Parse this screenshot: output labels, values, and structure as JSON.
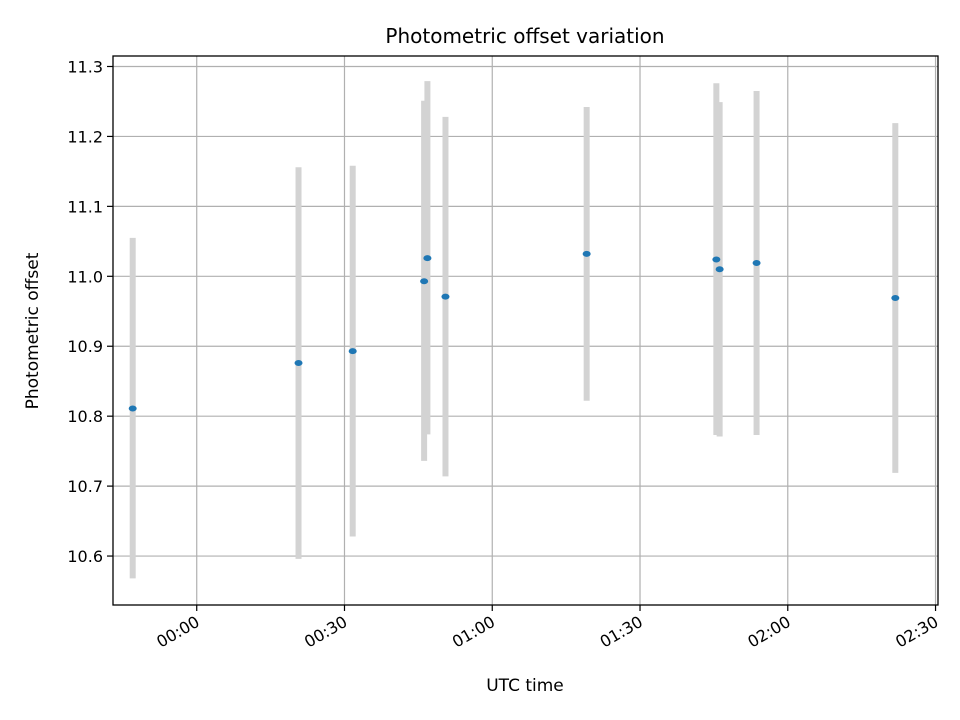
{
  "chart_data": {
    "type": "scatter",
    "title": "Photometric offset variation",
    "xlabel": "UTC time",
    "ylabel": "Photometric offset",
    "xlim": [
      "2023-01-01T23:43:00",
      "2023-01-02T02:30:30"
    ],
    "ylim": [
      10.53,
      11.315
    ],
    "grid": true,
    "colors": {
      "points": "#1f77b4",
      "errorbars": "#d3d3d3",
      "grid": "#b0b0b0"
    },
    "x_ticks": [
      {
        "t": "2023-01-02T00:00:00",
        "label": "00:00"
      },
      {
        "t": "2023-01-02T00:30:00",
        "label": "00:30"
      },
      {
        "t": "2023-01-02T01:00:00",
        "label": "01:00"
      },
      {
        "t": "2023-01-02T01:30:00",
        "label": "01:30"
      },
      {
        "t": "2023-01-02T02:00:00",
        "label": "02:00"
      },
      {
        "t": "2023-01-02T02:30:00",
        "label": "02:30"
      }
    ],
    "y_ticks": [
      {
        "v": 10.6,
        "label": "10.6"
      },
      {
        "v": 10.7,
        "label": "10.7"
      },
      {
        "v": 10.8,
        "label": "10.8"
      },
      {
        "v": 10.9,
        "label": "10.9"
      },
      {
        "v": 11.0,
        "label": "11.0"
      },
      {
        "v": 11.1,
        "label": "11.1"
      },
      {
        "v": 11.2,
        "label": "11.2"
      },
      {
        "v": 11.3,
        "label": "11.3"
      }
    ],
    "points": [
      {
        "t": "2023-01-01T23:47:00",
        "y": 10.811,
        "ylow": 10.568,
        "yhigh": 11.055
      },
      {
        "t": "2023-01-02T00:20:40",
        "y": 10.876,
        "ylow": 10.596,
        "yhigh": 11.156
      },
      {
        "t": "2023-01-02T00:31:40",
        "y": 10.893,
        "ylow": 10.628,
        "yhigh": 11.158
      },
      {
        "t": "2023-01-02T00:46:10",
        "y": 10.993,
        "ylow": 10.736,
        "yhigh": 11.251
      },
      {
        "t": "2023-01-02T00:46:50",
        "y": 11.026,
        "ylow": 10.774,
        "yhigh": 11.279
      },
      {
        "t": "2023-01-02T00:50:30",
        "y": 10.971,
        "ylow": 10.714,
        "yhigh": 11.228
      },
      {
        "t": "2023-01-02T01:19:10",
        "y": 11.032,
        "ylow": 10.822,
        "yhigh": 11.242
      },
      {
        "t": "2023-01-02T01:45:30",
        "y": 11.024,
        "ylow": 10.773,
        "yhigh": 11.276
      },
      {
        "t": "2023-01-02T01:46:10",
        "y": 11.01,
        "ylow": 10.771,
        "yhigh": 11.249
      },
      {
        "t": "2023-01-02T01:53:40",
        "y": 11.019,
        "ylow": 10.773,
        "yhigh": 11.265
      },
      {
        "t": "2023-01-02T02:21:50",
        "y": 10.969,
        "ylow": 10.719,
        "yhigh": 11.219
      }
    ]
  }
}
